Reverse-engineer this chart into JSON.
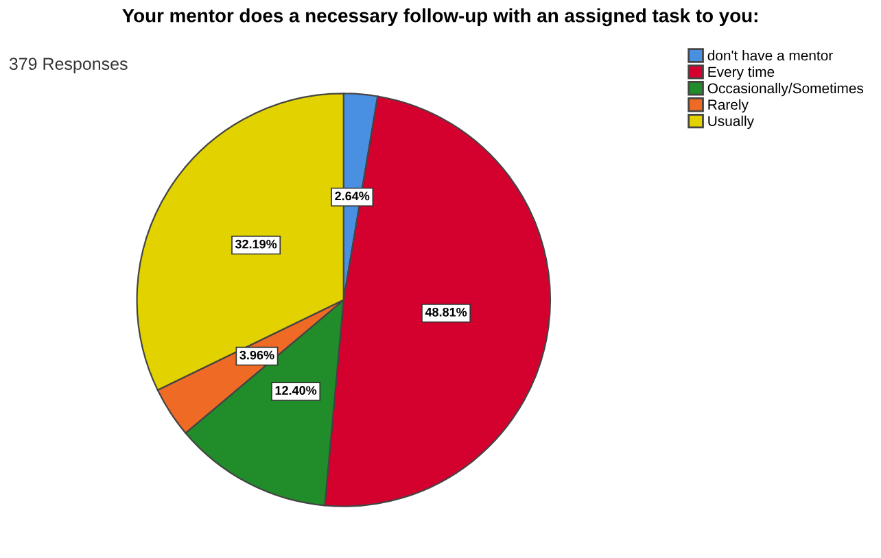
{
  "chart_data": {
    "type": "pie",
    "title": "Your mentor does a necessary follow-up with an assigned task to you:",
    "annotations": [
      "379 Responses"
    ],
    "categories": [
      "don't have a mentor",
      "Every time",
      "Occasionally/Sometimes",
      "Rarely",
      "Usually"
    ],
    "values": [
      2.64,
      48.81,
      12.4,
      3.96,
      32.19
    ],
    "value_labels": [
      "2.64%",
      "48.81%",
      "12.40%",
      "3.96%",
      "32.19%"
    ],
    "colors": [
      "#4a90e2",
      "#d4002e",
      "#218c2a",
      "#ef6a25",
      "#e2d200"
    ],
    "legend": "top right"
  }
}
